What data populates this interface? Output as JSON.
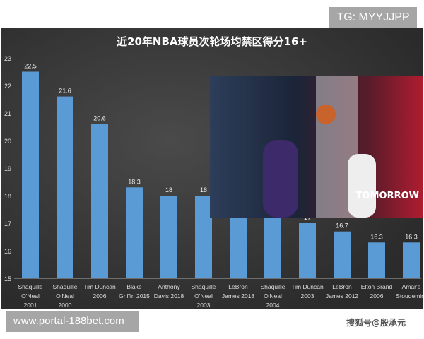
{
  "chart_data": {
    "type": "bar",
    "title": "近20年NBA球员次轮场均禁区得分16+",
    "categories": [
      "Shaquille O'Neal 2001",
      "Shaquille O'Neal 2000",
      "Tim Duncan 2006",
      "Blake Griffin 2015",
      "Anthony Davis 2018",
      "Shaquille O'Neal 2003",
      "LeBron James 2018",
      "Shaquille O'Neal 2004",
      "Tim Duncan 2003",
      "LeBron James 2012",
      "Elton Brand 2006",
      "Amar'e Stoudemire"
    ],
    "category_lines": [
      [
        "Shaquille",
        "O'Neal",
        "2001"
      ],
      [
        "Shaquille",
        "O'Neal",
        "2000"
      ],
      [
        "Tim Duncan",
        "2006"
      ],
      [
        "Blake",
        "Griffin 2015"
      ],
      [
        "Anthony",
        "Davis 2018"
      ],
      [
        "Shaquille",
        "O'Neal",
        "2003"
      ],
      [
        "LeBron",
        "James 2018"
      ],
      [
        "Shaquille",
        "O'Neal",
        "2004"
      ],
      [
        "Tim Duncan",
        "2003"
      ],
      [
        "LeBron",
        "James 2012"
      ],
      [
        "Elton Brand",
        "2006"
      ],
      [
        "Amar'e",
        "Stoudemire"
      ]
    ],
    "values": [
      22.5,
      21.6,
      20.6,
      18.3,
      18,
      18,
      17.5,
      17.3,
      17,
      16.7,
      16.3,
      16.3
    ],
    "ylim": [
      15,
      23
    ],
    "yticks": [
      15,
      16,
      17,
      18,
      19,
      20,
      21,
      22,
      23
    ],
    "bar_color": "#5b9bd5",
    "grid": false
  },
  "photo": {
    "banner_text": "TOMORROW"
  },
  "watermarks": {
    "tg": "TG: MYYJJPP",
    "url": "www.portal-188bet.com",
    "sohu": "搜狐号@殷承元"
  }
}
